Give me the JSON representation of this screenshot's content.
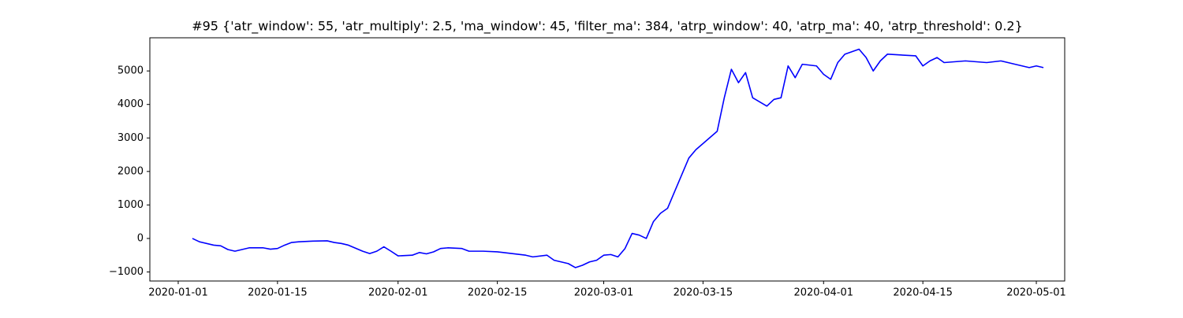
{
  "chart_data": {
    "type": "line",
    "title": "#95 {'atr_window': 55, 'atr_multiply': 2.5, 'ma_window': 45, 'filter_ma': 384, 'atrp_window': 40, 'atrp_ma': 40, 'atrp_threshold': 0.2}",
    "x": [
      "2020-01-03",
      "2020-01-04",
      "2020-01-06",
      "2020-01-07",
      "2020-01-08",
      "2020-01-09",
      "2020-01-10",
      "2020-01-11",
      "2020-01-13",
      "2020-01-14",
      "2020-01-15",
      "2020-01-16",
      "2020-01-17",
      "2020-01-18",
      "2020-01-20",
      "2020-01-22",
      "2020-01-23",
      "2020-01-24",
      "2020-01-25",
      "2020-01-27",
      "2020-01-28",
      "2020-01-29",
      "2020-01-30",
      "2020-01-31",
      "2020-02-01",
      "2020-02-03",
      "2020-02-04",
      "2020-02-05",
      "2020-02-06",
      "2020-02-07",
      "2020-02-08",
      "2020-02-10",
      "2020-02-11",
      "2020-02-13",
      "2020-02-15",
      "2020-02-17",
      "2020-02-19",
      "2020-02-20",
      "2020-02-22",
      "2020-02-23",
      "2020-02-25",
      "2020-02-26",
      "2020-02-27",
      "2020-02-28",
      "2020-02-29",
      "2020-03-01",
      "2020-03-02",
      "2020-03-03",
      "2020-03-04",
      "2020-03-05",
      "2020-03-06",
      "2020-03-07",
      "2020-03-08",
      "2020-03-09",
      "2020-03-10",
      "2020-03-11",
      "2020-03-12",
      "2020-03-13",
      "2020-03-14",
      "2020-03-17",
      "2020-03-18",
      "2020-03-19",
      "2020-03-20",
      "2020-03-21",
      "2020-03-22",
      "2020-03-24",
      "2020-03-25",
      "2020-03-26",
      "2020-03-27",
      "2020-03-28",
      "2020-03-29",
      "2020-03-31",
      "2020-04-01",
      "2020-04-02",
      "2020-04-03",
      "2020-04-04",
      "2020-04-06",
      "2020-04-07",
      "2020-04-08",
      "2020-04-09",
      "2020-04-10",
      "2020-04-14",
      "2020-04-15",
      "2020-04-16",
      "2020-04-17",
      "2020-04-18",
      "2020-04-21",
      "2020-04-24",
      "2020-04-26",
      "2020-04-28",
      "2020-04-29",
      "2020-04-30",
      "2020-05-01",
      "2020-05-02"
    ],
    "series": [
      {
        "color": "#0000ff",
        "values": [
          0,
          -100,
          -200,
          -220,
          -330,
          -380,
          -330,
          -280,
          -280,
          -320,
          -300,
          -200,
          -120,
          -100,
          -80,
          -70,
          -120,
          -150,
          -200,
          -380,
          -450,
          -380,
          -250,
          -380,
          -520,
          -500,
          -420,
          -460,
          -400,
          -300,
          -280,
          -300,
          -380,
          -380,
          -400,
          -450,
          -500,
          -550,
          -500,
          -650,
          -750,
          -870,
          -800,
          -700,
          -650,
          -500,
          -480,
          -550,
          -300,
          150,
          100,
          0,
          500,
          750,
          900,
          1400,
          1900,
          2400,
          2650,
          3200,
          4200,
          5050,
          4650,
          4950,
          4200,
          3950,
          4150,
          4200,
          5150,
          4800,
          5200,
          5150,
          4900,
          4750,
          5250,
          5500,
          5650,
          5400,
          5000,
          5300,
          5500,
          5450,
          5150,
          5300,
          5400,
          5250,
          5300,
          5250,
          5300,
          5200,
          5150,
          5100,
          5150,
          5100
        ]
      }
    ],
    "xlim": [
      "2019-12-28",
      "2020-05-05"
    ],
    "xticks": [
      "2020-01-01",
      "2020-01-15",
      "2020-02-01",
      "2020-02-15",
      "2020-03-01",
      "2020-03-15",
      "2020-04-01",
      "2020-04-15",
      "2020-05-01"
    ],
    "ylim": [
      -1270,
      5990
    ],
    "yticks": [
      {
        "value": -1000,
        "label": "−1000"
      },
      0,
      1000,
      2000,
      3000,
      4000,
      5000
    ],
    "grid": false
  }
}
